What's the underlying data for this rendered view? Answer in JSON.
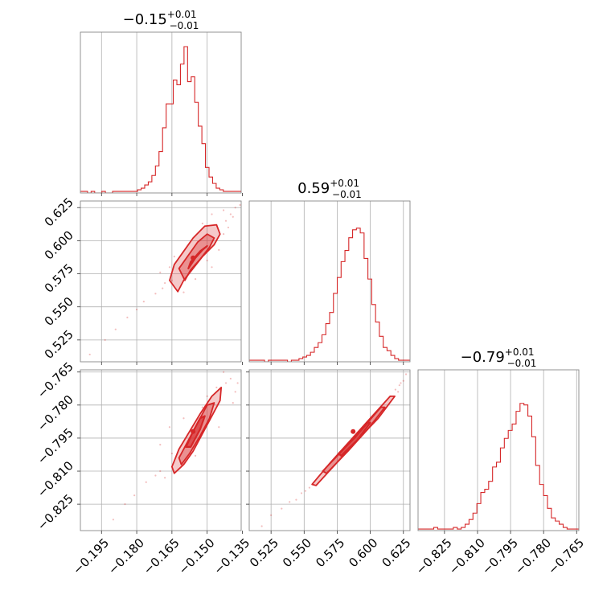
{
  "chart_data": {
    "type": "corner",
    "color": "#d62728",
    "grid": true,
    "titles": [
      {
        "value": "−0.15",
        "plus": "+0.01",
        "minus": "−0.01"
      },
      {
        "value": "0.59",
        "plus": "+0.01",
        "minus": "−0.01"
      },
      {
        "value": "−0.79",
        "plus": "+0.01",
        "minus": "−0.01"
      }
    ],
    "ticks": [
      {
        "values": [
          -0.195,
          -0.18,
          -0.165,
          -0.15,
          -0.135
        ],
        "labels": [
          "−0.195",
          "−0.180",
          "−0.165",
          "−0.150",
          "−0.135"
        ],
        "lim": [
          -0.204,
          -0.1355
        ]
      },
      {
        "values": [
          0.525,
          0.55,
          0.575,
          0.6,
          0.625
        ],
        "labels": [
          "0.525",
          "0.550",
          "0.575",
          "0.600",
          "0.625"
        ],
        "lim": [
          0.5085,
          0.63
        ]
      },
      {
        "values": [
          -0.825,
          -0.81,
          -0.795,
          -0.78,
          -0.765
        ],
        "labels": [
          "−0.825",
          "−0.810",
          "−0.795",
          "−0.780",
          "−0.765"
        ],
        "lim": [
          -0.837,
          -0.764
        ]
      }
    ],
    "marginals": [
      {
        "param": 0,
        "bin_start": -0.204,
        "bin_end": -0.1355,
        "counts": [
          0.01,
          0.01,
          0,
          0.01,
          0,
          0,
          0.01,
          0,
          0,
          0.01,
          0.01,
          0.01,
          0.01,
          0.01,
          0.01,
          0.01,
          0.02,
          0.03,
          0.05,
          0.07,
          0.11,
          0.17,
          0.26,
          0.41,
          0.56,
          0.56,
          0.71,
          0.68,
          0.81,
          0.92,
          0.7,
          0.73,
          0.57,
          0.42,
          0.31,
          0.16,
          0.1,
          0.06,
          0.03,
          0.02,
          0.01,
          0.01,
          0.01,
          0.01,
          0.01
        ]
      },
      {
        "param": 1,
        "bin_start": 0.5085,
        "bin_end": 0.63,
        "counts": [
          0.01,
          0.01,
          0.01,
          0.01,
          0,
          0.01,
          0.01,
          0.01,
          0.01,
          0.01,
          0,
          0.01,
          0.01,
          0.02,
          0.03,
          0.04,
          0.06,
          0.09,
          0.12,
          0.17,
          0.24,
          0.31,
          0.43,
          0.53,
          0.63,
          0.7,
          0.78,
          0.83,
          0.84,
          0.81,
          0.65,
          0.52,
          0.36,
          0.25,
          0.16,
          0.09,
          0.07,
          0.04,
          0.02,
          0.01,
          0.01,
          0.01
        ]
      },
      {
        "param": 2,
        "bin_start": -0.837,
        "bin_end": -0.764,
        "counts": [
          0.01,
          0.01,
          0.01,
          0.01,
          0.02,
          0.01,
          0.01,
          0.01,
          0.01,
          0.02,
          0.01,
          0.02,
          0.04,
          0.07,
          0.11,
          0.17,
          0.24,
          0.26,
          0.31,
          0.4,
          0.43,
          0.52,
          0.58,
          0.63,
          0.67,
          0.75,
          0.8,
          0.79,
          0.72,
          0.59,
          0.41,
          0.29,
          0.22,
          0.14,
          0.08,
          0.06,
          0.04,
          0.02,
          0.01,
          0.01,
          0.01
        ]
      }
    ],
    "joints": [
      {
        "x": 0,
        "y": 1,
        "center": [
          -0.156,
          0.587
        ],
        "contours": [
          {
            "points": [
              [
                -0.1625,
                0.5615
              ],
              [
                -0.16,
                0.57
              ],
              [
                -0.156,
                0.579
              ],
              [
                -0.152,
                0.588
              ],
              [
                -0.147,
                0.597
              ],
              [
                -0.1445,
                0.605
              ],
              [
                -0.146,
                0.612
              ],
              [
                -0.151,
                0.611
              ],
              [
                -0.156,
                0.602
              ],
              [
                -0.16,
                0.592
              ],
              [
                -0.164,
                0.582
              ],
              [
                -0.166,
                0.57
              ]
            ],
            "fill": 0.25,
            "stroke": 1.8
          },
          {
            "points": [
              [
                -0.1595,
                0.57
              ],
              [
                -0.157,
                0.578
              ],
              [
                -0.153,
                0.586
              ],
              [
                -0.149,
                0.595
              ],
              [
                -0.147,
                0.602
              ],
              [
                -0.15,
                0.605
              ],
              [
                -0.154,
                0.599
              ],
              [
                -0.158,
                0.589
              ],
              [
                -0.162,
                0.579
              ]
            ],
            "fill": 0.35,
            "stroke": 1.8
          },
          {
            "points": [
              [
                -0.158,
                0.579
              ],
              [
                -0.155,
                0.587
              ],
              [
                -0.152,
                0.593
              ],
              [
                -0.15,
                0.596
              ],
              [
                -0.153,
                0.592
              ],
              [
                -0.157,
                0.584
              ]
            ],
            "fill": 0.6,
            "stroke": 2.2
          }
        ],
        "scatter": [
          [
            -0.2,
            0.514
          ],
          [
            -0.1935,
            0.525
          ],
          [
            -0.189,
            0.533
          ],
          [
            -0.184,
            0.542
          ],
          [
            -0.18,
            0.548
          ],
          [
            -0.177,
            0.554
          ],
          [
            -0.172,
            0.56
          ],
          [
            -0.169,
            0.564
          ],
          [
            -0.168,
            0.568
          ],
          [
            -0.165,
            0.57
          ],
          [
            -0.142,
            0.615
          ],
          [
            -0.14,
            0.62
          ],
          [
            -0.138,
            0.625
          ],
          [
            -0.139,
            0.618
          ],
          [
            -0.143,
            0.623
          ],
          [
            -0.148,
            0.62
          ],
          [
            -0.152,
            0.613
          ],
          [
            -0.145,
            0.593
          ],
          [
            -0.15,
            0.585
          ],
          [
            -0.17,
            0.576
          ],
          [
            -0.164,
            0.588
          ],
          [
            -0.143,
            0.605
          ],
          [
            -0.16,
            0.561
          ],
          [
            -0.155,
            0.571
          ],
          [
            -0.148,
            0.58
          ],
          [
            -0.166,
            0.58
          ],
          [
            -0.136,
            0.627
          ],
          [
            -0.141,
            0.61
          ]
        ]
      },
      {
        "x": 0,
        "y": 2,
        "center": [
          -0.156,
          -0.792
        ],
        "contours": [
          {
            "points": [
              [
                -0.165,
                -0.808
              ],
              [
                -0.162,
                -0.8
              ],
              [
                -0.1575,
                -0.792
              ],
              [
                -0.153,
                -0.784
              ],
              [
                -0.148,
                -0.776
              ],
              [
                -0.144,
                -0.772
              ],
              [
                -0.1445,
                -0.778
              ],
              [
                -0.148,
                -0.785
              ],
              [
                -0.152,
                -0.793
              ],
              [
                -0.156,
                -0.801
              ],
              [
                -0.16,
                -0.807
              ],
              [
                -0.164,
                -0.811
              ]
            ],
            "fill": 0.25,
            "stroke": 1.8
          },
          {
            "points": [
              [
                -0.162,
                -0.804
              ],
              [
                -0.158,
                -0.796
              ],
              [
                -0.154,
                -0.788
              ],
              [
                -0.15,
                -0.78
              ],
              [
                -0.147,
                -0.779
              ],
              [
                -0.149,
                -0.786
              ],
              [
                -0.153,
                -0.794
              ],
              [
                -0.1575,
                -0.802
              ],
              [
                -0.161,
                -0.807
              ]
            ],
            "fill": 0.35,
            "stroke": 1.8
          },
          {
            "points": [
              [
                -0.159,
                -0.799
              ],
              [
                -0.156,
                -0.792
              ],
              [
                -0.153,
                -0.786
              ],
              [
                -0.151,
                -0.785
              ],
              [
                -0.153,
                -0.791
              ],
              [
                -0.157,
                -0.799
              ]
            ],
            "fill": 0.6,
            "stroke": 2.2
          }
        ],
        "scatter": [
          [
            -0.19,
            -0.832
          ],
          [
            -0.185,
            -0.825
          ],
          [
            -0.181,
            -0.821
          ],
          [
            -0.176,
            -0.815
          ],
          [
            -0.172,
            -0.812
          ],
          [
            -0.17,
            -0.81
          ],
          [
            -0.168,
            -0.813
          ],
          [
            -0.142,
            -0.77
          ],
          [
            -0.14,
            -0.768
          ],
          [
            -0.138,
            -0.774
          ],
          [
            -0.143,
            -0.765
          ],
          [
            -0.146,
            -0.772
          ],
          [
            -0.15,
            -0.776
          ],
          [
            -0.17,
            -0.798
          ],
          [
            -0.166,
            -0.79
          ],
          [
            -0.145,
            -0.79
          ],
          [
            -0.148,
            -0.783
          ],
          [
            -0.155,
            -0.803
          ],
          [
            -0.162,
            -0.809
          ],
          [
            -0.139,
            -0.779
          ],
          [
            -0.16,
            -0.786
          ],
          [
            -0.152,
            -0.781
          ],
          [
            -0.165,
            -0.802
          ],
          [
            -0.137,
            -0.77
          ]
        ]
      },
      {
        "x": 1,
        "y": 2,
        "center": [
          0.587,
          -0.792
        ],
        "contours": [
          {
            "points": [
              [
                0.556,
                -0.816
              ],
              [
                0.57,
                -0.806
              ],
              [
                0.585,
                -0.796
              ],
              [
                0.6,
                -0.786
              ],
              [
                0.615,
                -0.776
              ],
              [
                0.6185,
                -0.776
              ],
              [
                0.606,
                -0.786
              ],
              [
                0.59,
                -0.796
              ],
              [
                0.575,
                -0.806
              ],
              [
                0.559,
                -0.8165
              ]
            ],
            "fill": 0.25,
            "stroke": 1.8
          },
          {
            "points": [
              [
                0.564,
                -0.81
              ],
              [
                0.58,
                -0.8
              ],
              [
                0.595,
                -0.79
              ],
              [
                0.608,
                -0.781
              ],
              [
                0.611,
                -0.781
              ],
              [
                0.598,
                -0.791
              ],
              [
                0.583,
                -0.801
              ],
              [
                0.567,
                -0.811
              ]
            ],
            "fill": 0.35,
            "stroke": 1.8
          },
          {
            "points": [
              [
                0.576,
                -0.802
              ],
              [
                0.588,
                -0.795
              ],
              [
                0.598,
                -0.788
              ],
              [
                0.6,
                -0.788
              ],
              [
                0.59,
                -0.796
              ],
              [
                0.578,
                -0.803
              ]
            ],
            "fill": 0.6,
            "stroke": 2.2
          }
        ],
        "scatter": [
          [
            0.518,
            -0.835
          ],
          [
            0.525,
            -0.83
          ],
          [
            0.533,
            -0.827
          ],
          [
            0.539,
            -0.824
          ],
          [
            0.544,
            -0.823
          ],
          [
            0.548,
            -0.82
          ],
          [
            0.551,
            -0.819
          ],
          [
            0.554,
            -0.8175
          ],
          [
            0.619,
            -0.773
          ],
          [
            0.622,
            -0.771
          ],
          [
            0.625,
            -0.769
          ],
          [
            0.627,
            -0.766
          ],
          [
            0.623,
            -0.77
          ],
          [
            0.621,
            -0.774
          ]
        ]
      }
    ]
  }
}
